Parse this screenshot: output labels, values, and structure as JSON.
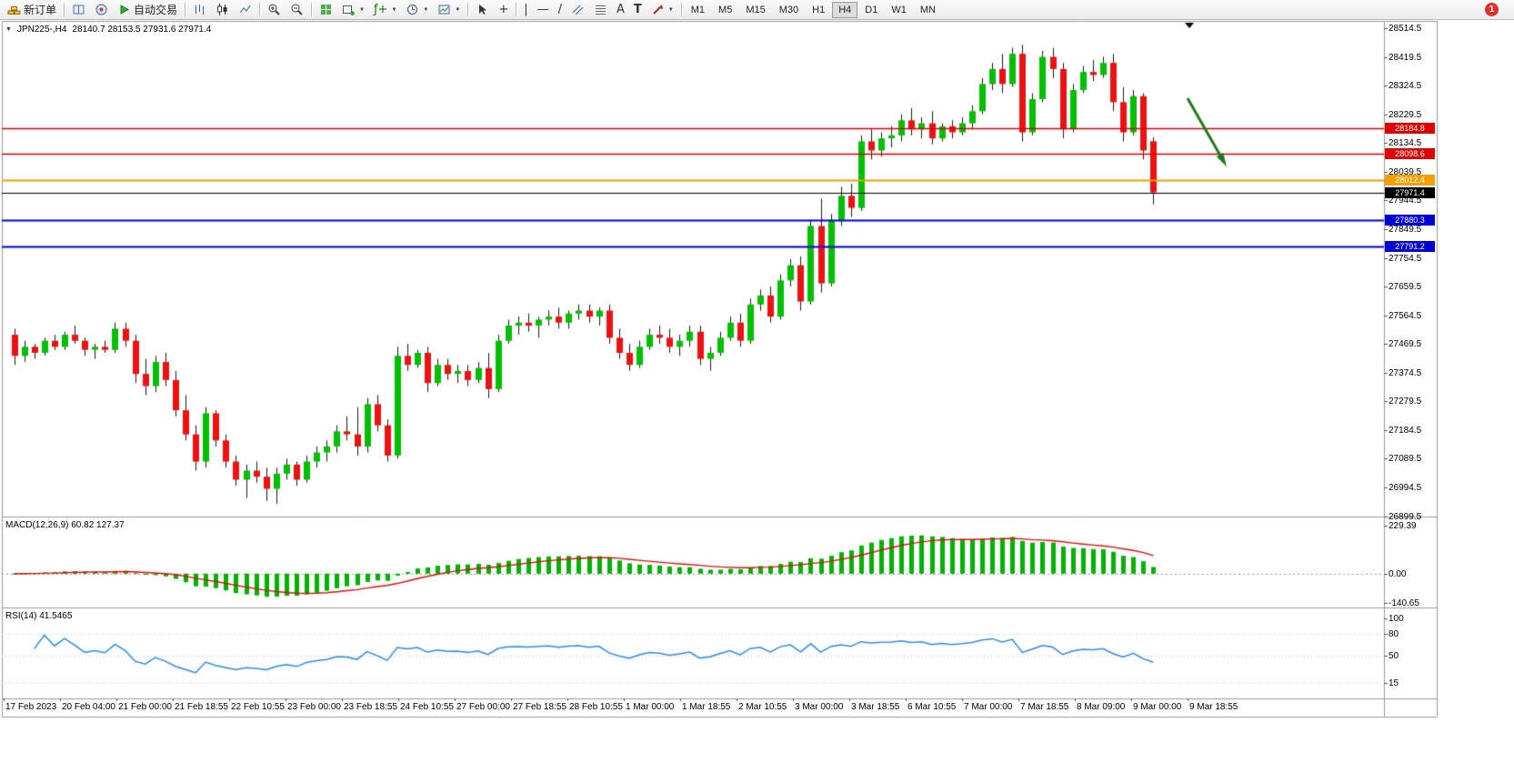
{
  "toolbar": {
    "new_order_label": "新订单",
    "autotrading_label": "自动交易",
    "timeframes": [
      "M1",
      "M5",
      "M15",
      "M30",
      "H1",
      "H4",
      "D1",
      "W1",
      "MN"
    ],
    "active_timeframe": "H4",
    "notification_count": "1"
  },
  "chart": {
    "header": {
      "symbol_period": "JPN225-,H4",
      "ohlc": "28140.7 28153.5 27931.6 27971.4"
    },
    "macd_label": "MACD(12,26,9) 60.82 127.37",
    "rsi_label": "RSI(14) 41.5465"
  },
  "chart_data": {
    "type": "candlestick",
    "symbol": "JPN225-",
    "timeframe": "H4",
    "title": "JPN225-,H4 28140.7 28153.5 27931.6 27971.4",
    "price_axis_ticks": [
      "28514.5",
      "28419.5",
      "28324.5",
      "28229.5",
      "28134.5",
      "28039.5",
      "27944.5",
      "27849.5",
      "27754.5",
      "27659.5",
      "27564.5",
      "27469.5",
      "27374.5",
      "27279.5",
      "27184.5",
      "27089.5",
      "26994.5",
      "26899.5"
    ],
    "time_axis_labels": [
      "17 Feb 2023",
      "20 Feb 04:00",
      "21 Feb 00:00",
      "21 Feb 18:55",
      "22 Feb 10:55",
      "23 Feb 00:00",
      "23 Feb 18:55",
      "24 Feb 10:55",
      "27 Feb 00:00",
      "27 Feb 18:55",
      "28 Feb 10:55",
      "1 Mar 00:00",
      "1 Mar 18:55",
      "2 Mar 10:55",
      "3 Mar 00:00",
      "3 Mar 18:55",
      "6 Mar 10:55",
      "7 Mar 00:00",
      "7 Mar 18:55",
      "8 Mar 09:00",
      "9 Mar 00:00",
      "9 Mar 18:55"
    ],
    "candles_ohlc": [
      [
        27500,
        27520,
        27400,
        27430
      ],
      [
        27430,
        27480,
        27410,
        27460
      ],
      [
        27460,
        27470,
        27420,
        27440
      ],
      [
        27440,
        27490,
        27430,
        27480
      ],
      [
        27480,
        27500,
        27450,
        27460
      ],
      [
        27460,
        27510,
        27450,
        27500
      ],
      [
        27500,
        27530,
        27470,
        27480
      ],
      [
        27480,
        27490,
        27430,
        27450
      ],
      [
        27450,
        27470,
        27420,
        27460
      ],
      [
        27460,
        27480,
        27440,
        27450
      ],
      [
        27450,
        27540,
        27440,
        27520
      ],
      [
        27520,
        27540,
        27460,
        27480
      ],
      [
        27480,
        27500,
        27340,
        27370
      ],
      [
        27370,
        27420,
        27300,
        27330
      ],
      [
        27330,
        27430,
        27310,
        27410
      ],
      [
        27410,
        27440,
        27330,
        27350
      ],
      [
        27350,
        27380,
        27230,
        27250
      ],
      [
        27250,
        27300,
        27150,
        27170
      ],
      [
        27170,
        27200,
        27050,
        27080
      ],
      [
        27080,
        27260,
        27060,
        27240
      ],
      [
        27240,
        27250,
        27130,
        27150
      ],
      [
        27150,
        27170,
        27060,
        27080
      ],
      [
        27080,
        27100,
        27000,
        27020
      ],
      [
        27020,
        27070,
        26960,
        27050
      ],
      [
        27050,
        27080,
        27010,
        27030
      ],
      [
        27030,
        27060,
        26950,
        26990
      ],
      [
        26990,
        27060,
        26940,
        27040
      ],
      [
        27040,
        27090,
        27020,
        27070
      ],
      [
        27070,
        27080,
        27000,
        27020
      ],
      [
        27020,
        27100,
        27010,
        27080
      ],
      [
        27080,
        27130,
        27060,
        27110
      ],
      [
        27110,
        27150,
        27080,
        27130
      ],
      [
        27130,
        27200,
        27110,
        27180
      ],
      [
        27180,
        27230,
        27150,
        27170
      ],
      [
        27170,
        27260,
        27100,
        27130
      ],
      [
        27130,
        27290,
        27110,
        27270
      ],
      [
        27270,
        27300,
        27180,
        27200
      ],
      [
        27200,
        27220,
        27080,
        27100
      ],
      [
        27100,
        27460,
        27090,
        27430
      ],
      [
        27430,
        27470,
        27380,
        27400
      ],
      [
        27400,
        27450,
        27390,
        27440
      ],
      [
        27440,
        27460,
        27310,
        27340
      ],
      [
        27340,
        27420,
        27330,
        27400
      ],
      [
        27400,
        27420,
        27350,
        27370
      ],
      [
        27370,
        27400,
        27340,
        27380
      ],
      [
        27380,
        27400,
        27330,
        27350
      ],
      [
        27350,
        27410,
        27340,
        27390
      ],
      [
        27390,
        27440,
        27290,
        27320
      ],
      [
        27320,
        27500,
        27310,
        27480
      ],
      [
        27480,
        27550,
        27470,
        27530
      ],
      [
        27530,
        27560,
        27500,
        27540
      ],
      [
        27540,
        27570,
        27510,
        27530
      ],
      [
        27530,
        27560,
        27490,
        27550
      ],
      [
        27550,
        27580,
        27530,
        27560
      ],
      [
        27560,
        27590,
        27520,
        27540
      ],
      [
        27540,
        27580,
        27520,
        27570
      ],
      [
        27570,
        27600,
        27550,
        27580
      ],
      [
        27580,
        27600,
        27540,
        27560
      ],
      [
        27560,
        27590,
        27530,
        27580
      ],
      [
        27580,
        27600,
        27470,
        27490
      ],
      [
        27490,
        27520,
        27420,
        27440
      ],
      [
        27440,
        27470,
        27380,
        27400
      ],
      [
        27400,
        27480,
        27390,
        27460
      ],
      [
        27460,
        27520,
        27450,
        27500
      ],
      [
        27500,
        27530,
        27470,
        27490
      ],
      [
        27490,
        27520,
        27440,
        27460
      ],
      [
        27460,
        27500,
        27430,
        27480
      ],
      [
        27480,
        27530,
        27460,
        27510
      ],
      [
        27510,
        27530,
        27400,
        27420
      ],
      [
        27420,
        27460,
        27380,
        27440
      ],
      [
        27440,
        27510,
        27430,
        27490
      ],
      [
        27490,
        27560,
        27480,
        27540
      ],
      [
        27540,
        27570,
        27460,
        27480
      ],
      [
        27480,
        27620,
        27470,
        27600
      ],
      [
        27600,
        27650,
        27580,
        27630
      ],
      [
        27630,
        27660,
        27540,
        27560
      ],
      [
        27560,
        27700,
        27550,
        27680
      ],
      [
        27680,
        27750,
        27660,
        27730
      ],
      [
        27730,
        27760,
        27580,
        27610
      ],
      [
        27610,
        27880,
        27600,
        27860
      ],
      [
        27860,
        27950,
        27640,
        27670
      ],
      [
        27670,
        27900,
        27660,
        27880
      ],
      [
        27880,
        27990,
        27860,
        27960
      ],
      [
        27960,
        28000,
        27890,
        27920
      ],
      [
        27920,
        28160,
        27910,
        28140
      ],
      [
        28140,
        28180,
        28080,
        28110
      ],
      [
        28110,
        28170,
        28090,
        28150
      ],
      [
        28150,
        28190,
        28120,
        28160
      ],
      [
        28160,
        28230,
        28140,
        28210
      ],
      [
        28210,
        28250,
        28160,
        28180
      ],
      [
        28180,
        28220,
        28150,
        28200
      ],
      [
        28200,
        28240,
        28130,
        28150
      ],
      [
        28150,
        28200,
        28140,
        28190
      ],
      [
        28190,
        28210,
        28150,
        28170
      ],
      [
        28170,
        28220,
        28160,
        28200
      ],
      [
        28200,
        28260,
        28180,
        28240
      ],
      [
        28240,
        28350,
        28230,
        28330
      ],
      [
        28330,
        28400,
        28310,
        28380
      ],
      [
        28380,
        28430,
        28300,
        28330
      ],
      [
        28330,
        28450,
        28320,
        28430
      ],
      [
        28430,
        28460,
        28140,
        28170
      ],
      [
        28170,
        28300,
        28160,
        28280
      ],
      [
        28280,
        28440,
        28270,
        28420
      ],
      [
        28420,
        28450,
        28350,
        28380
      ],
      [
        28380,
        28400,
        28150,
        28180
      ],
      [
        28180,
        28330,
        28170,
        28310
      ],
      [
        28310,
        28390,
        28300,
        28370
      ],
      [
        28370,
        28410,
        28340,
        28360
      ],
      [
        28360,
        28420,
        28350,
        28400
      ],
      [
        28400,
        28430,
        28240,
        28270
      ],
      [
        28270,
        28320,
        28140,
        28170
      ],
      [
        28170,
        28310,
        28160,
        28290
      ],
      [
        28290,
        28300,
        28080,
        28110
      ],
      [
        28140.7,
        28153.5,
        27931.6,
        27971.4
      ]
    ],
    "horizontal_lines": [
      {
        "value": 28184.8,
        "label": "28184.8",
        "color": "#e00000",
        "width": 1.4
      },
      {
        "value": 28098.6,
        "label": "28098.6",
        "color": "#e00000",
        "width": 1.4
      },
      {
        "value": 28012.4,
        "label": "28012.4",
        "color": "#f0a000",
        "width": 2
      },
      {
        "value": 27880.3,
        "label": "27880.3",
        "color": "#0000d4",
        "width": 2
      },
      {
        "value": 27791.2,
        "label": "27791.2",
        "color": "#0000d4",
        "width": 2
      }
    ],
    "current_price_line": {
      "value": 27971.4,
      "label": "27971.4",
      "color": "#000000"
    },
    "colors": {
      "up_candle": "#00c000",
      "down_candle": "#ee1111",
      "wick": "#1a1a1a",
      "background": "#ffffff"
    },
    "annotations": {
      "arrow": {
        "direction": "down-right",
        "color": "#1f7a1f"
      }
    },
    "indicators": {
      "macd": {
        "name": "MACD",
        "params": "12,26,9",
        "value_main": "60.82",
        "value_signal": "127.37",
        "axis_ticks": [
          "229.39",
          "0.00",
          "-140.65"
        ],
        "histogram_color": "#00b200",
        "signal_color": "#e01010"
      },
      "rsi": {
        "name": "RSI",
        "params": "14",
        "value": "41.5465",
        "axis_ticks": [
          "100",
          "80",
          "50",
          "15"
        ],
        "levels": [
          80,
          50,
          15
        ],
        "line_color": "#2d8ceb"
      }
    }
  }
}
